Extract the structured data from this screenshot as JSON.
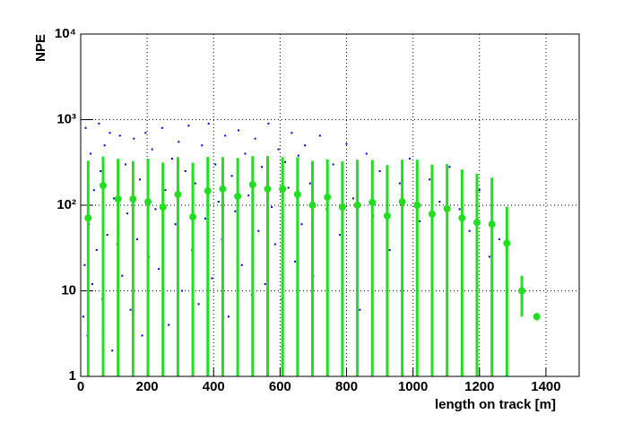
{
  "chart_data": {
    "type": "scatter",
    "x_label": "length on track [m]",
    "y_label": "NPE",
    "xlim": [
      0,
      1500
    ],
    "ylim": [
      1,
      10000
    ],
    "log_y": true,
    "grid": true,
    "xticks": [
      0,
      200,
      400,
      600,
      800,
      1000,
      1200,
      1400
    ],
    "yticks": [
      1,
      10,
      {
        "value": 100,
        "label": "10²"
      },
      {
        "value": 1000,
        "label": "10³"
      },
      {
        "value": 10000,
        "label": "10⁴"
      }
    ],
    "series": [
      {
        "type": "scatter",
        "color": "#0000cc",
        "x": [
          8,
          12,
          15,
          20,
          25,
          30,
          35,
          40,
          48,
          55,
          60,
          65,
          72,
          80,
          88,
          95,
          100,
          110,
          118,
          125,
          135,
          140,
          150,
          160,
          170,
          178,
          185,
          195,
          205,
          215,
          225,
          235,
          245,
          255,
          265,
          275,
          285,
          295,
          305,
          315,
          325,
          335,
          345,
          355,
          365,
          375,
          385,
          395,
          405,
          415,
          425,
          435,
          445,
          455,
          465,
          475,
          485,
          495,
          505,
          515,
          525,
          535,
          545,
          555,
          565,
          575,
          585,
          595,
          605,
          615,
          625,
          635,
          645,
          655,
          665,
          675,
          690,
          700,
          720,
          740,
          760,
          780,
          800,
          820,
          840,
          860,
          880,
          900,
          930,
          960,
          990,
          1020,
          1050,
          1080,
          1110,
          1140,
          1170,
          1200,
          1230,
          1260
        ],
        "values": [
          5,
          20,
          800,
          3,
          60,
          400,
          12,
          150,
          30,
          900,
          250,
          8,
          500,
          45,
          700,
          2,
          120,
          35,
          650,
          15,
          300,
          80,
          6,
          600,
          40,
          200,
          3,
          700,
          25,
          450,
          90,
          18,
          800,
          150,
          4,
          350,
          60,
          550,
          10,
          250,
          850,
          30,
          180,
          7,
          500,
          70,
          900,
          14,
          300,
          110,
          40,
          650,
          5,
          220,
          85,
          750,
          20,
          400,
          130,
          9,
          600,
          50,
          280,
          12,
          900,
          95,
          35,
          450,
          8,
          320,
          160,
          700,
          22,
          380,
          60,
          500,
          180,
          15,
          650,
          90,
          300,
          45,
          520,
          120,
          6,
          400,
          75,
          250,
          30,
          180,
          350,
          65,
          200,
          110,
          280,
          90,
          50,
          150,
          25,
          40
        ]
      },
      {
        "type": "profile",
        "color": "#22dd22",
        "x": [
          22.5,
          67.5,
          112.5,
          157.5,
          202.5,
          247.5,
          292.5,
          337.5,
          382.5,
          427.5,
          472.5,
          517.5,
          562.5,
          607.5,
          652.5,
          697.5,
          742.5,
          787.5,
          832.5,
          877.5,
          922.5,
          967.5,
          1012.5,
          1057.5,
          1102.5,
          1147.5,
          1192.5,
          1237.5,
          1282.5,
          1327.5,
          1372.5
        ],
        "values": [
          71,
          170,
          118,
          118,
          110,
          95,
          134,
          73,
          147,
          155,
          127,
          174,
          155,
          155,
          134,
          100,
          124,
          95,
          100,
          108,
          75,
          110,
          100,
          79,
          91,
          71,
          63,
          60,
          36,
          10,
          5
        ],
        "errors": [
          260,
          200,
          230,
          210,
          240,
          220,
          230,
          240,
          220,
          210,
          230,
          200,
          220,
          210,
          230,
          230,
          220,
          230,
          240,
          230,
          220,
          230,
          240,
          220,
          210,
          190,
          170,
          150,
          60,
          5,
          0.5
        ]
      }
    ]
  }
}
